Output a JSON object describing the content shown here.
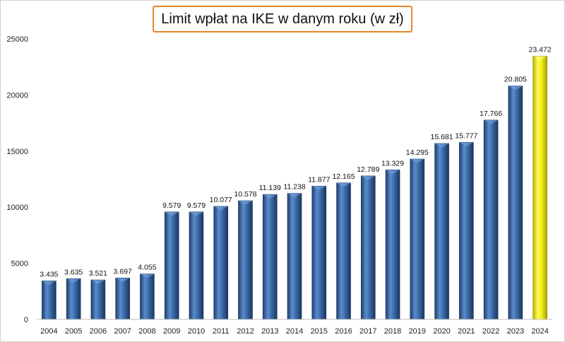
{
  "chart_data": {
    "type": "bar",
    "title": "Limit wpłat na IKE w danym roku (w zł)",
    "xlabel": "",
    "ylabel": "",
    "ylim": [
      0,
      25000
    ],
    "yticks": [
      "0",
      "5000",
      "10000",
      "15000",
      "20000",
      "25000"
    ],
    "grid": false,
    "categories": [
      "2004",
      "2005",
      "2006",
      "2007",
      "2008",
      "2009",
      "2010",
      "2011",
      "2012",
      "2013",
      "2014",
      "2015",
      "2016",
      "2017",
      "2018",
      "2019",
      "2020",
      "2021",
      "2022",
      "2023",
      "2024"
    ],
    "values": [
      3435,
      3635,
      3521,
      3697,
      4055,
      9579,
      9579,
      10077,
      10578,
      11139,
      11238,
      11877,
      12165,
      12789,
      13329,
      14295,
      15681,
      15777,
      17766,
      20805,
      23472
    ],
    "labels": [
      "3.435",
      "3.635",
      "3.521",
      "3.697",
      "4.055",
      "9.579",
      "9.579",
      "10.077",
      "10.578",
      "11.139",
      "11.238",
      "11.877",
      "12.165",
      "12.789",
      "13.329",
      "14.295",
      "15.681",
      "15.777",
      "17.766",
      "20.805",
      "23.472"
    ],
    "colors": {
      "bar": "#3b6aa8",
      "bar_highlight": "#f2ef1e",
      "title_border": "#e8852a"
    },
    "highlight_index": 20
  }
}
